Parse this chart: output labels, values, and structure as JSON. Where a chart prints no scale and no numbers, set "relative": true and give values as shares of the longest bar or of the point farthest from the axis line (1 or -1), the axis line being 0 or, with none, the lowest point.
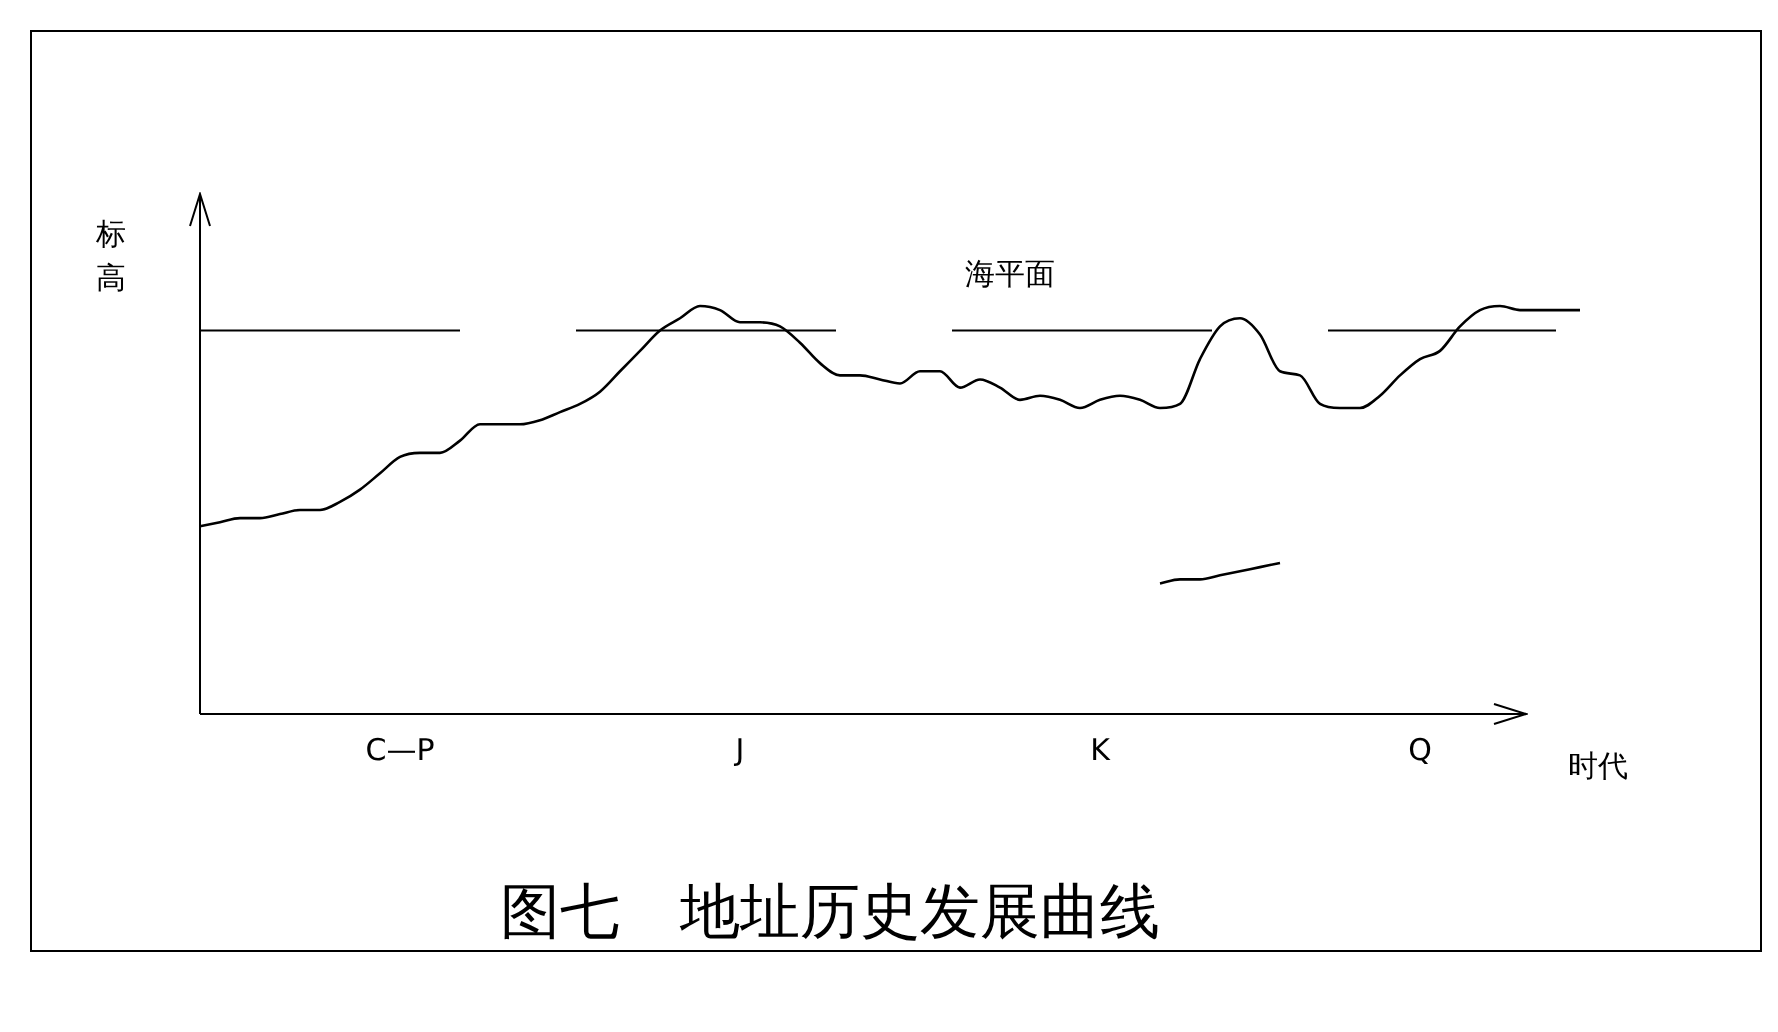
{
  "chart_data": {
    "type": "line",
    "title": "图七　地址历史发展曲线",
    "xlabel": "时代",
    "ylabel": "标高",
    "relative": true,
    "legend": false,
    "marker": "none",
    "categories": [
      null,
      null,
      null,
      null,
      null,
      null,
      null,
      null,
      null,
      null,
      "C—P",
      null,
      null,
      null,
      null,
      null,
      null,
      null,
      null,
      null,
      null,
      null,
      null,
      null,
      null,
      null,
      null,
      "J",
      null,
      null,
      null,
      null,
      null,
      null,
      null,
      null,
      null,
      null,
      null,
      null,
      null,
      null,
      null,
      null,
      null,
      "K",
      null,
      null,
      null,
      null,
      null,
      null,
      null,
      null,
      null,
      null,
      null,
      null,
      null,
      null,
      null,
      "Q",
      null,
      null,
      null,
      null,
      null,
      null,
      null,
      null
    ],
    "series": [
      {
        "color": "#000000",
        "values": [
          0.46,
          0.47,
          0.48,
          0.48,
          0.49,
          0.5,
          0.5,
          0.52,
          0.55,
          0.59,
          0.63,
          0.64,
          0.64,
          0.67,
          0.71,
          0.71,
          0.71,
          0.72,
          0.74,
          0.76,
          0.79,
          0.84,
          0.89,
          0.94,
          0.97,
          1,
          0.99,
          0.96,
          0.96,
          0.95,
          0.91,
          0.86,
          0.83,
          0.83,
          0.82,
          0.81,
          0.84,
          0.84,
          0.8,
          0.82,
          0.8,
          0.77,
          0.78,
          0.77,
          0.75,
          0.77,
          0.78,
          0.77,
          0.75,
          0.76,
          0.87,
          0.95,
          0.97,
          0.93,
          0.84,
          0.83,
          0.76,
          0.75,
          0.75,
          0.78,
          0.83,
          0.87,
          0.89,
          0.95,
          0.99,
          1,
          0.99,
          0.99,
          0.99,
          0.99
        ]
      },
      {
        "color": "#000000",
        "values": [
          null,
          null,
          null,
          null,
          null,
          null,
          null,
          null,
          null,
          null,
          null,
          null,
          null,
          null,
          null,
          null,
          null,
          null,
          null,
          null,
          null,
          null,
          null,
          null,
          null,
          null,
          null,
          null,
          null,
          null,
          null,
          null,
          null,
          null,
          null,
          null,
          null,
          null,
          null,
          null,
          null,
          null,
          null,
          null,
          null,
          null,
          null,
          null,
          0.32,
          0.33,
          0.33,
          0.34,
          0.35,
          0.36,
          0.37,
          null,
          null,
          null,
          null,
          null,
          null,
          null,
          null,
          null,
          null,
          null,
          null,
          null,
          null,
          null
        ]
      }
    ],
    "ref_lines": [
      {
        "axis": "y",
        "value": 0.94,
        "label": "海平面",
        "line_style": "dashed",
        "color": "#000000"
      }
    ]
  }
}
